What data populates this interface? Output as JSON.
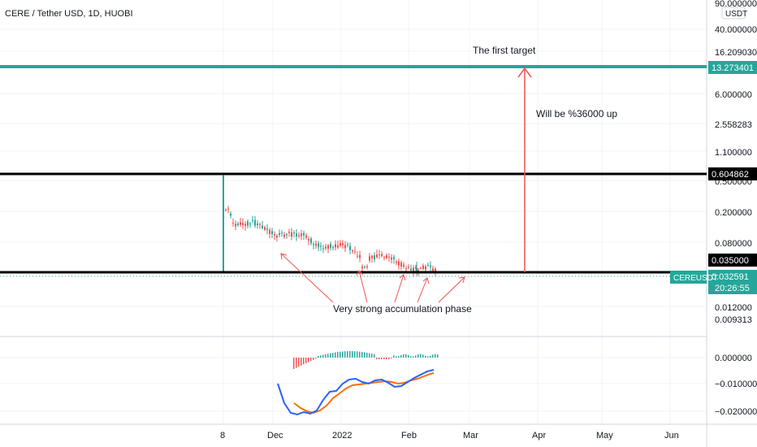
{
  "chart_data": {
    "type": "candlestick",
    "title": "CERE / Tether USD, 1D, HUOBI",
    "price_unit": "USDT",
    "price_scale": "log",
    "price_ticks": [
      "90.000000",
      "40.000000",
      "16.209030",
      "6.000000",
      "2.558283",
      "1.100000",
      "0.500000",
      "0.200000",
      "0.080000",
      "0.012000",
      "0.009313"
    ],
    "time_ticks": [
      "8",
      "Dec",
      "2022",
      "Feb",
      "Mar",
      "Apr",
      "May",
      "Jun"
    ],
    "price_tags": [
      {
        "name": "target",
        "value": "13.273401",
        "color": "#26a69a",
        "text_color": "#ffffff"
      },
      {
        "name": "resistance",
        "value": "0.604862",
        "color": "#000000",
        "text_color": "#ffffff"
      },
      {
        "name": "support",
        "value": "0.035000",
        "color": "#000000",
        "text_color": "#ffffff"
      },
      {
        "name": "last",
        "value": "0.032591",
        "countdown": "20:26:55",
        "color": "#26a69a",
        "text_color": "#ffffff"
      }
    ],
    "symbol_badge": "CEREUSDT",
    "horizontal_lines": [
      {
        "name": "target",
        "value": 13.273401,
        "color": "#26a69a"
      },
      {
        "name": "resistance",
        "value": 0.604862,
        "color": "#000000"
      },
      {
        "name": "support",
        "value": 0.035,
        "color": "#000000"
      }
    ],
    "annotations": [
      {
        "name": "target-label",
        "text": "The first target"
      },
      {
        "name": "gain-label",
        "text": "Will be %36000 up"
      },
      {
        "name": "accumulation-label",
        "text": "Very strong accumulation phase"
      }
    ],
    "indicator": {
      "type": "macd",
      "ticks": [
        "0.000000",
        "−0.010000",
        "−0.020000"
      ],
      "macd_color": "#2962ff",
      "signal_color": "#ff6d00",
      "hist_pos_color": "#26a69a",
      "hist_neg_color": "#ef5350"
    },
    "colors": {
      "up": "#26a69a",
      "down": "#ef5350",
      "arrow": "#ef5350"
    }
  }
}
